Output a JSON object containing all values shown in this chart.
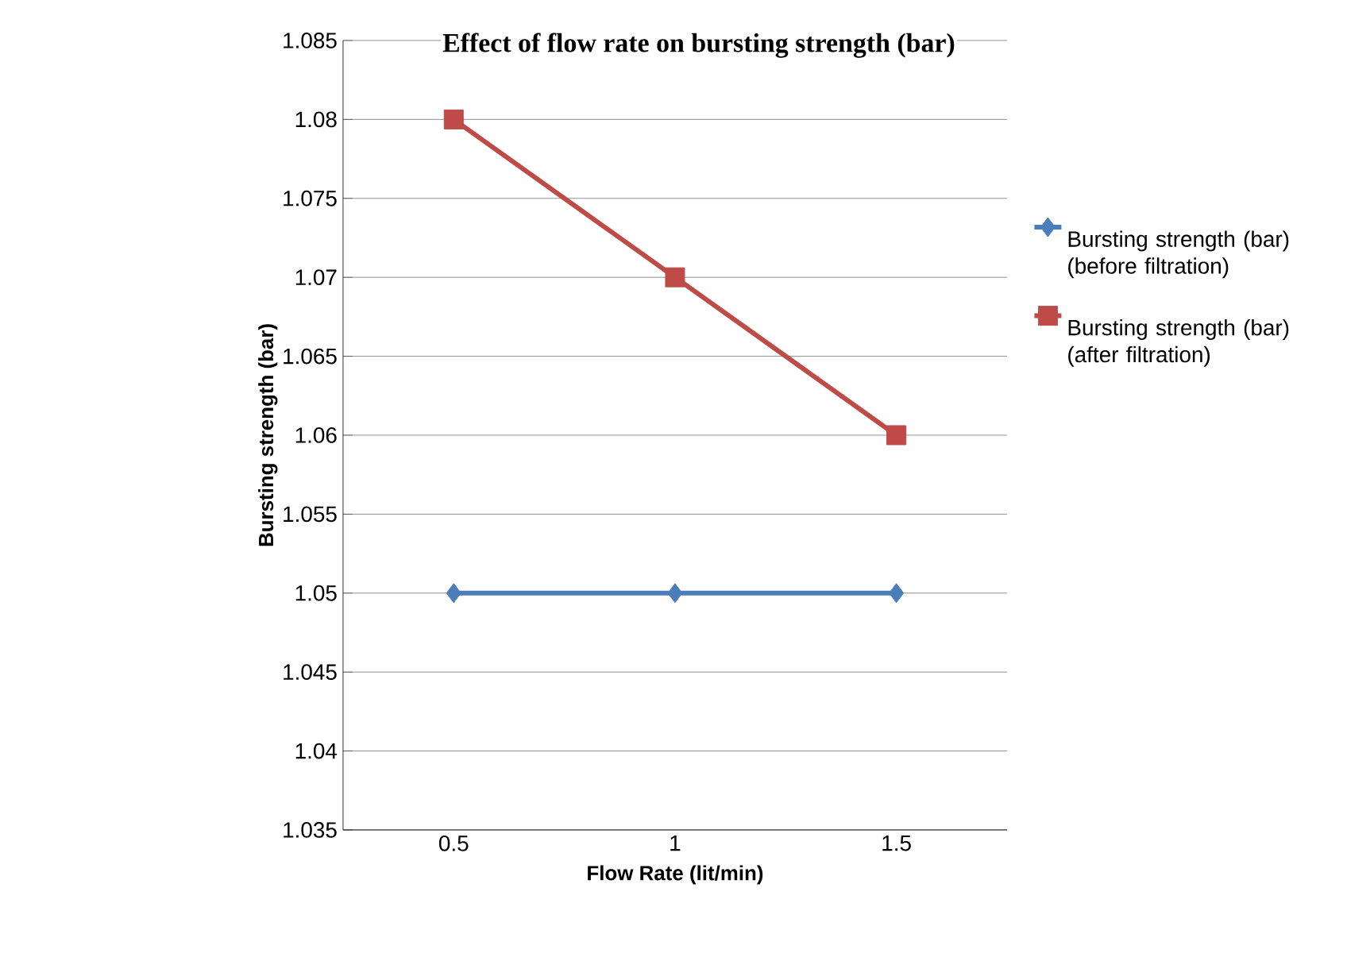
{
  "chart_data": {
    "type": "line",
    "title": "Effect of flow rate on bursting strength (bar)",
    "xlabel": "Flow Rate (lit/min)",
    "ylabel": "Bursting strength (bar)",
    "categories": [
      "0.5",
      "1",
      "1.5"
    ],
    "series": [
      {
        "name": "Bursting strength (bar) (before filtration)",
        "color": "#4a7ebb",
        "marker": "diamond",
        "values": [
          1.05,
          1.05,
          1.05
        ]
      },
      {
        "name": "Bursting strength (bar) (after filtration)",
        "color": "#be4b48",
        "marker": "square",
        "values": [
          1.08,
          1.07,
          1.06
        ]
      }
    ],
    "ylim": [
      1.035,
      1.085
    ],
    "yticks": [
      1.035,
      1.04,
      1.045,
      1.05,
      1.055,
      1.06,
      1.065,
      1.07,
      1.075,
      1.08,
      1.085
    ],
    "grid": "y",
    "legend": "right",
    "line_style": "solid"
  }
}
